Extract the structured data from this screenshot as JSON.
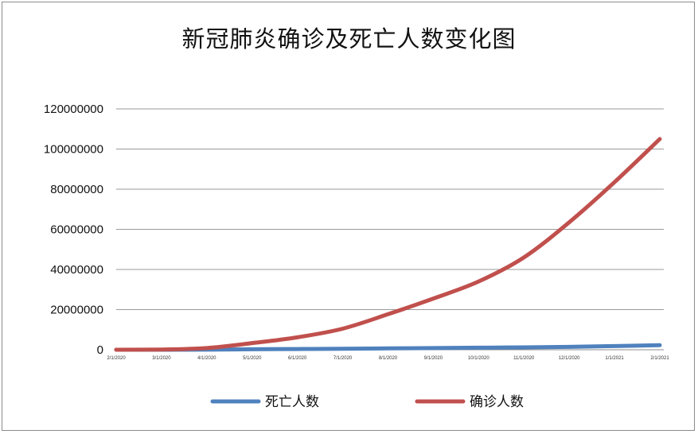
{
  "chart_data": {
    "type": "line",
    "title": "新冠肺炎确诊及死亡人数变化图",
    "xlabel": "",
    "ylabel": "",
    "x_tick_labels": [
      "2/1/2020",
      "3/1/2020",
      "4/1/2020",
      "5/1/2020",
      "6/1/2020",
      "7/1/2020",
      "8/1/2020",
      "9/1/2020",
      "10/1/2020",
      "11/1/2020",
      "12/1/2020",
      "1/1/2021",
      "2/1/2021"
    ],
    "y_tick_labels": [
      "0",
      "20000000",
      "40000000",
      "60000000",
      "80000000",
      "100000000",
      "120000000"
    ],
    "ylim": [
      0,
      120000000
    ],
    "grid": true,
    "legend_position": "bottom",
    "series": [
      {
        "name": "死亡人数",
        "color": "#4f81bd",
        "values": [
          250,
          3000,
          42000,
          230000,
          370000,
          510000,
          680000,
          860000,
          1020000,
          1200000,
          1460000,
          1830000,
          2270000
        ]
      },
      {
        "name": "确诊人数",
        "color": "#c0504d",
        "values": [
          12000,
          88000,
          860000,
          3300000,
          6200000,
          10500000,
          17700000,
          25500000,
          34000000,
          46000000,
          63500000,
          83500000,
          105000000
        ]
      }
    ]
  }
}
